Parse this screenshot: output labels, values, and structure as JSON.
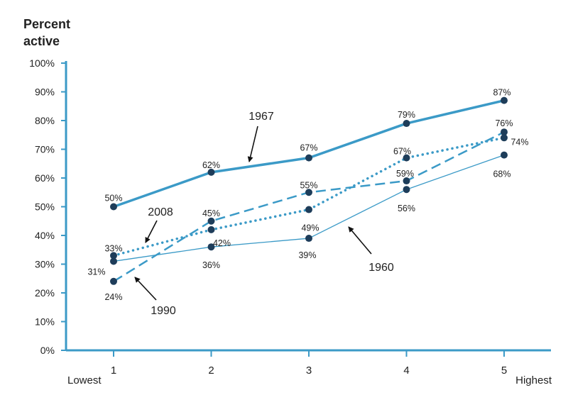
{
  "chart_data": {
    "type": "line",
    "ylabel": "Percent\nactive",
    "x": [
      1,
      2,
      3,
      4,
      5
    ],
    "x_tick_labels": [
      "1",
      "2",
      "3",
      "4",
      "5"
    ],
    "x_end_labels": {
      "low": "Lowest",
      "high": "Highest"
    },
    "y_ticks": [
      "0%",
      "10%",
      "20%",
      "30%",
      "40%",
      "50%",
      "60%",
      "70%",
      "80%",
      "90%",
      "100%"
    ],
    "ylim": [
      0,
      100
    ],
    "series": [
      {
        "name": "1967",
        "values": [
          50,
          62,
          67,
          79,
          87
        ],
        "labels": [
          "50%",
          "62%",
          "67%",
          "79%",
          "87%"
        ],
        "style": "solid-thick"
      },
      {
        "name": "1960",
        "values": [
          31,
          36,
          39,
          56,
          68
        ],
        "labels": [
          "31%",
          "36%",
          "39%",
          "56%",
          "68%"
        ],
        "style": "solid-thin"
      },
      {
        "name": "1990",
        "values": [
          24,
          45,
          55,
          59,
          76
        ],
        "labels": [
          "24%",
          "45%",
          "55%",
          "59%",
          "76%"
        ],
        "style": "dashed"
      },
      {
        "name": "2008",
        "values": [
          33,
          42,
          49,
          67,
          74
        ],
        "labels": [
          "33%",
          "42%",
          "49%",
          "67%",
          "74%"
        ],
        "style": "dotted"
      }
    ],
    "grid": false,
    "legend": "annotations with arrows",
    "colors": {
      "line": "#3b9ac7",
      "point": "#1e3d5a",
      "axis": "#3b9ac7",
      "arrow": "#111111"
    }
  }
}
